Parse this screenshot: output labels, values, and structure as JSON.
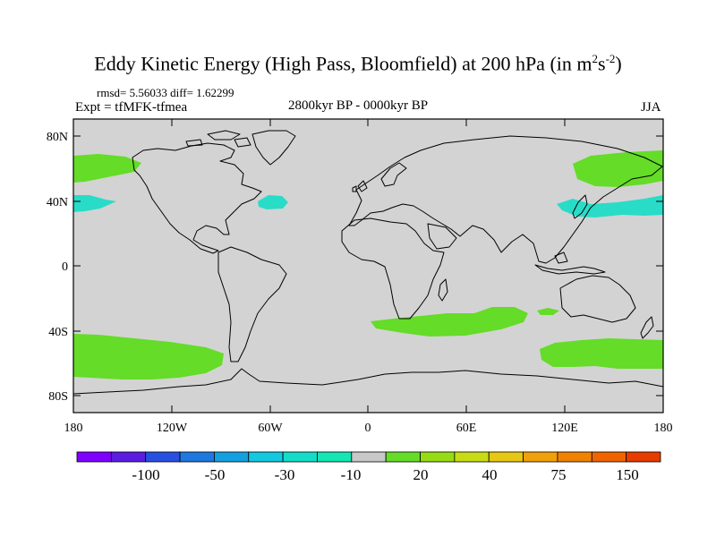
{
  "title": {
    "main": "Eddy Kinetic Energy (High Pass, Bloomfield) at 200 hPa (in m",
    "sup1": "2",
    "mid": "s",
    "sup2": "-2",
    "close": ")"
  },
  "stats": "rmsd= 5.56033 diff= 1.62299",
  "experiment": "Expt = tfMFK-tfmea",
  "period": "2800kyr BP - 0000kyr BP",
  "season": "JJA",
  "lat_labels": [
    "80N",
    "40N",
    "0",
    "40S",
    "80S"
  ],
  "lon_labels": [
    "180",
    "120W",
    "60W",
    "0",
    "60E",
    "120E",
    "180"
  ],
  "colorbar": {
    "colors": [
      "#8000ff",
      "#5a1ee0",
      "#2850e0",
      "#1e78e0",
      "#14a0e0",
      "#14c8e0",
      "#14dcc8",
      "#14e6b4",
      "#c8c8c8",
      "#64dc28",
      "#96dc14",
      "#c8dc14",
      "#e6c814",
      "#f0a00a",
      "#f08200",
      "#f06400",
      "#e63c00"
    ],
    "labels": [
      "-100",
      "-50",
      "-30",
      "-10",
      "20",
      "40",
      "75",
      "150"
    ]
  },
  "map": {
    "background_color": "#d3d3d3",
    "positive_color": "#64dc28",
    "negative_color": "#28dcc8"
  }
}
